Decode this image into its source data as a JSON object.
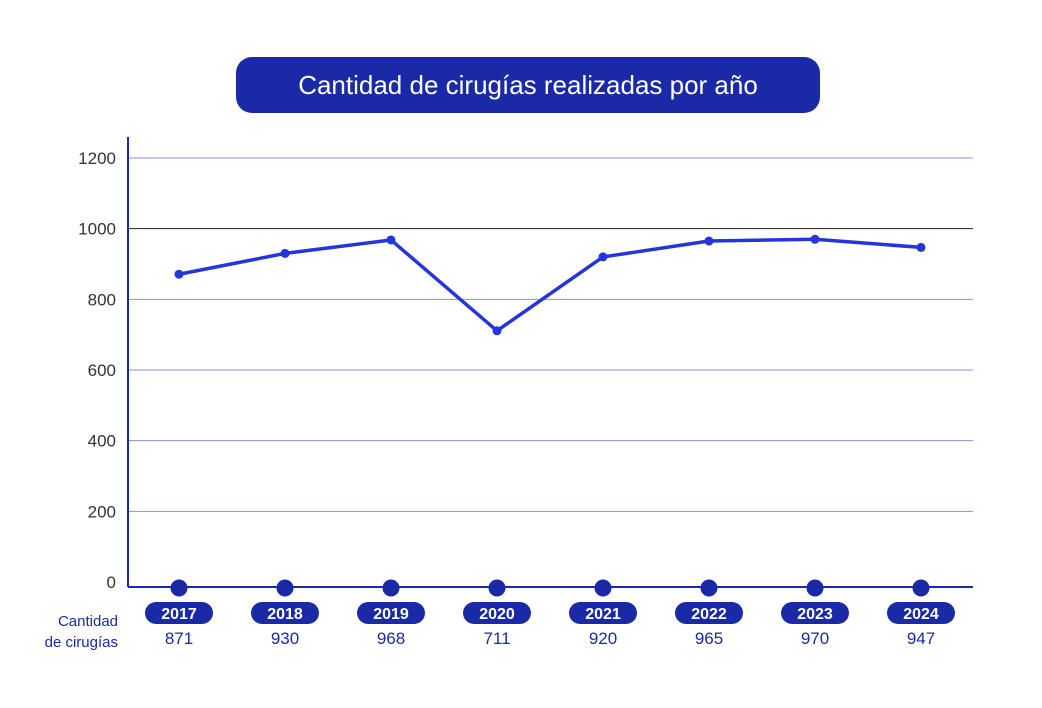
{
  "title": "Cantidad de cirugías realizadas por año",
  "row_label_line1": "Cantidad",
  "row_label_line2": "de cirugías",
  "colors": {
    "accent": "#1a2aa6",
    "line": "#2236d9",
    "grid": "#8a8fcf",
    "grid_highlight": "#222222"
  },
  "chart_data": {
    "type": "line",
    "title": "Cantidad de cirugías realizadas por año",
    "xlabel": "",
    "ylabel": "",
    "categories": [
      "2017",
      "2018",
      "2019",
      "2020",
      "2021",
      "2022",
      "2023",
      "2024"
    ],
    "series": [
      {
        "values": [
          871,
          930,
          968,
          711,
          920,
          965,
          970,
          947
        ]
      }
    ],
    "ylim": [
      0,
      1200
    ],
    "yticks": [
      0,
      200,
      400,
      600,
      800,
      1000,
      1200
    ],
    "grid": true,
    "data_labels_position": "below-axis"
  }
}
